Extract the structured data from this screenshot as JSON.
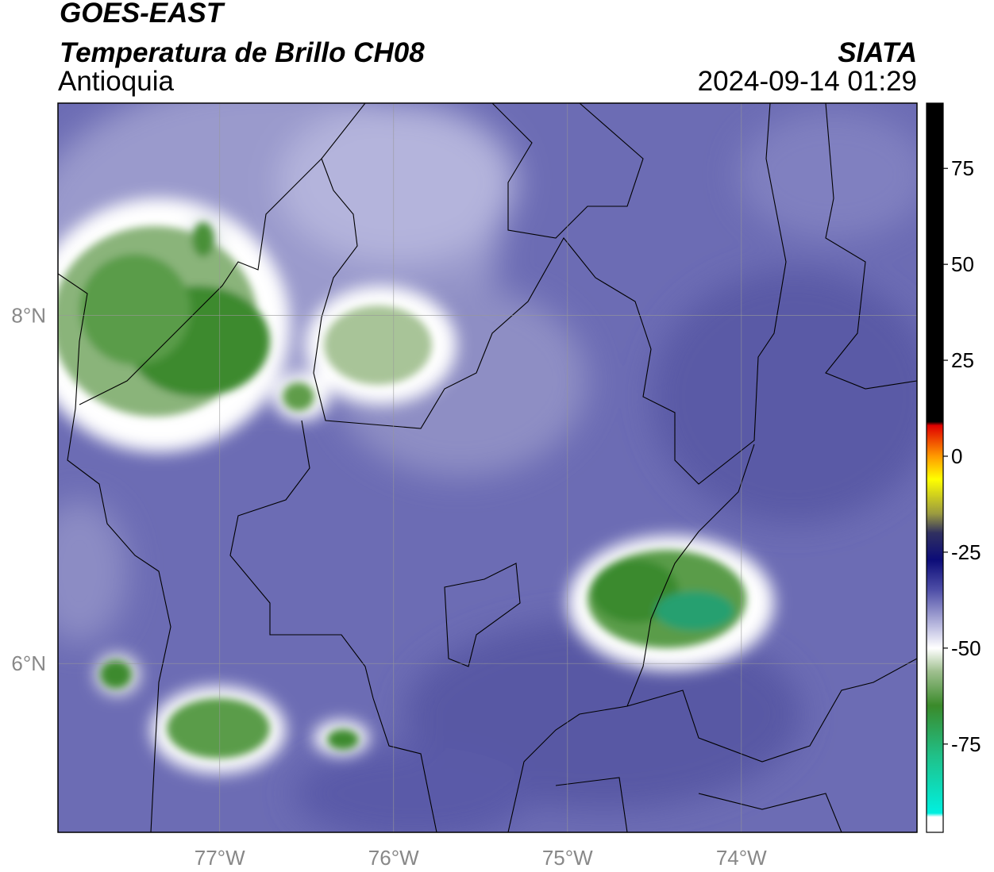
{
  "header": {
    "title": "GOES-EAST",
    "subtitle": "Temperatura de Brillo CH08",
    "region": "Antioquia",
    "source": "SIATA",
    "datetime": "2024-09-14 01:29"
  },
  "map": {
    "xlim": [
      -77.93,
      -72.99
    ],
    "ylim": [
      5.03,
      9.22
    ],
    "xticks": [
      {
        "value": -77,
        "label": "77°W"
      },
      {
        "value": -76,
        "label": "76°W"
      },
      {
        "value": -75,
        "label": "75°W"
      },
      {
        "value": -74,
        "label": "74°W"
      }
    ],
    "yticks": [
      {
        "value": 6,
        "label": "6°N"
      },
      {
        "value": 8,
        "label": "8°N"
      }
    ],
    "grid": true
  },
  "colorbar": {
    "lim": [
      -98,
      92
    ],
    "ticks": [
      75,
      50,
      25,
      0,
      -25,
      -50,
      -75
    ],
    "stops": [
      {
        "value": 92,
        "color": "#000000"
      },
      {
        "value": 9,
        "color": "#000000"
      },
      {
        "value": 8,
        "color": "#e00000"
      },
      {
        "value": 0,
        "color": "#ff9a00"
      },
      {
        "value": -6,
        "color": "#ffff00"
      },
      {
        "value": -15,
        "color": "#9a9a40"
      },
      {
        "value": -20,
        "color": "#303060"
      },
      {
        "value": -27,
        "color": "#0c0c78"
      },
      {
        "value": -35,
        "color": "#5050a8"
      },
      {
        "value": -45,
        "color": "#c4c4e4"
      },
      {
        "value": -50,
        "color": "#ffffff"
      },
      {
        "value": -56,
        "color": "#a0c090"
      },
      {
        "value": -65,
        "color": "#3a8a2a"
      },
      {
        "value": -78,
        "color": "#20c088"
      },
      {
        "value": -93,
        "color": "#00f0e0"
      },
      {
        "value": -94,
        "color": "#ffffff"
      },
      {
        "value": -98,
        "color": "#ffffff"
      }
    ]
  }
}
